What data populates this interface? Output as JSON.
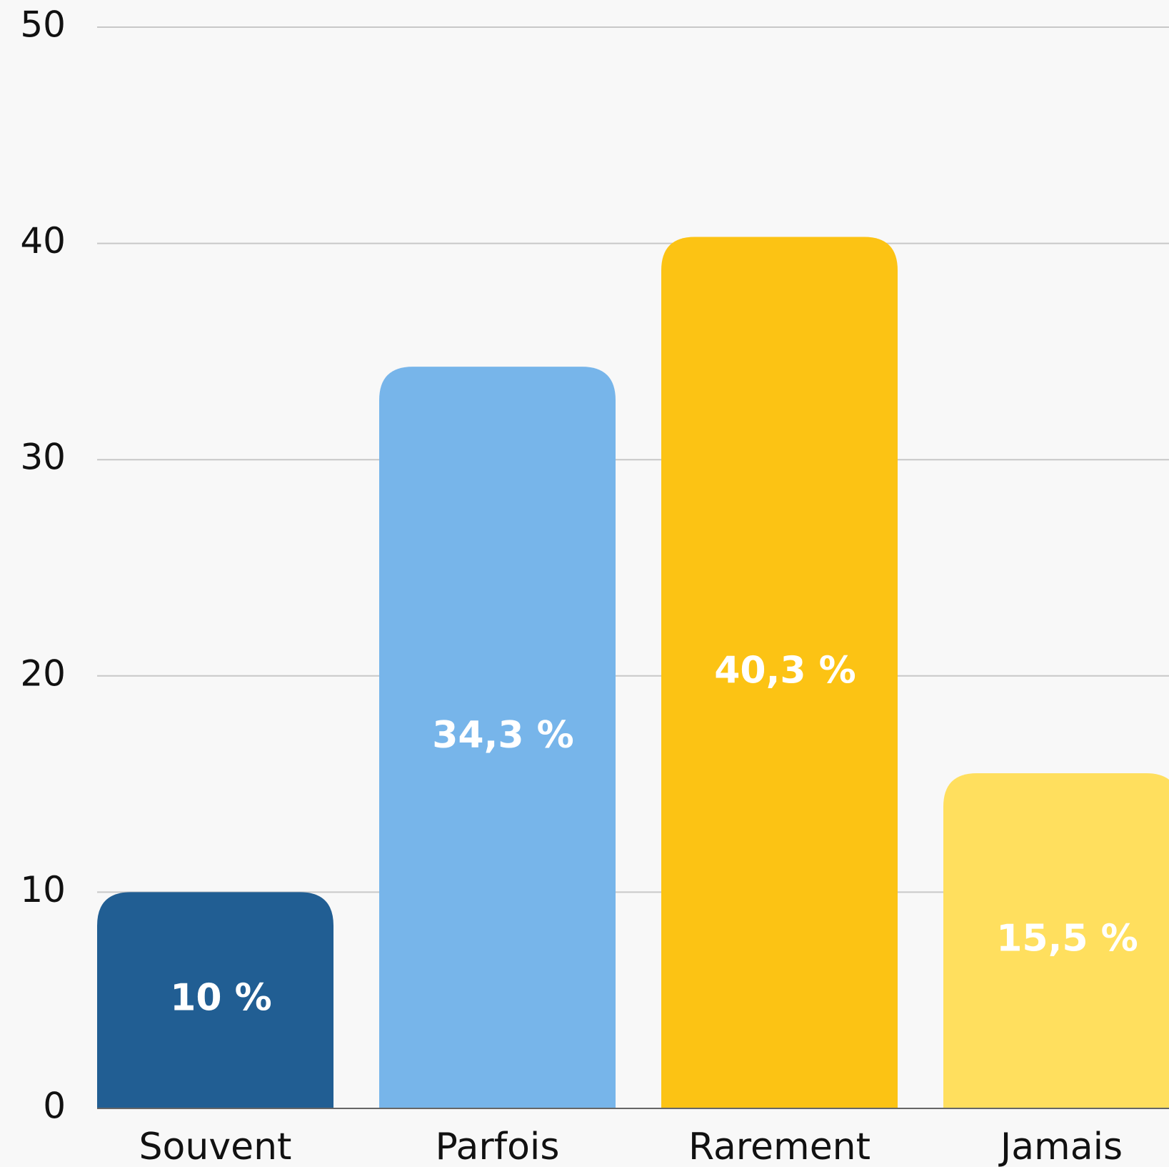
{
  "chart_data": {
    "type": "bar",
    "categories": [
      "Souvent",
      "Parfois",
      "Rarement",
      "Jamais"
    ],
    "values": [
      10,
      34.3,
      40.3,
      15.5
    ],
    "value_labels": [
      "10 %",
      "34,3 %",
      "40,3 %",
      "15,5 %"
    ],
    "colors": [
      "#215e93",
      "#77b5ea",
      "#fcc314",
      "#ffdf5e"
    ],
    "ylim": [
      0,
      50
    ],
    "yticks": [
      0,
      10,
      20,
      30,
      40,
      50
    ],
    "grid": true
  }
}
